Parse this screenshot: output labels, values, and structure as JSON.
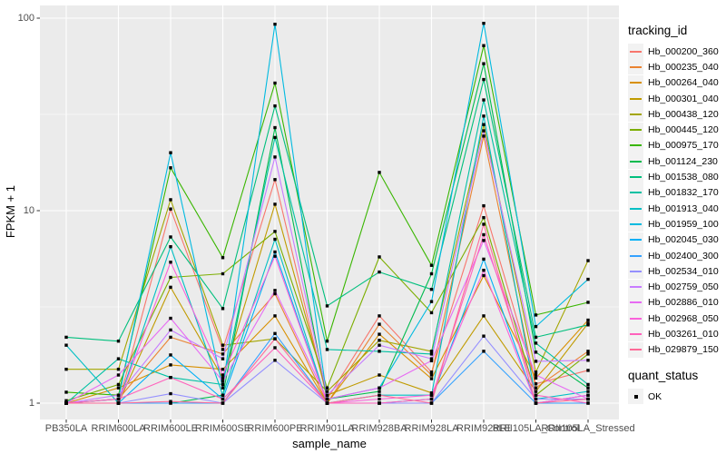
{
  "chart_data": {
    "type": "line",
    "title": "",
    "xlabel": "sample_name",
    "ylabel": "FPKM + 1",
    "yscale": "log10",
    "y_ticks": [
      1,
      10,
      100
    ],
    "y_minor": [
      3.162,
      31.62
    ],
    "ylim": [
      0.9,
      115
    ],
    "grid": true,
    "legend_position": "right",
    "point_marker": {
      "shape": "square",
      "color": "#000000",
      "size": 3.4
    },
    "categories": [
      "PB350LA",
      "RRIM600LA",
      "RRIM600LE",
      "RRIM600SE",
      "RRIM600PE",
      "RRIM901LA",
      "RRIM928BA",
      "RRIM928LA",
      "RRIM928LE",
      "RRII105LA_Control",
      "RRII105LA_Stressed"
    ],
    "series": [
      {
        "name": "Hb_000200_360",
        "color": "#F8766D",
        "values": [
          1.0,
          1.0,
          10.2,
          1.9,
          14.5,
          1.05,
          2.84,
          1.45,
          10.6,
          1.26,
          1.48
        ]
      },
      {
        "name": "Hb_000235_040",
        "color": "#EA8331",
        "values": [
          1.0,
          1.05,
          2.2,
          1.8,
          3.7,
          1.0,
          2.57,
          1.4,
          24.4,
          1.2,
          1.86
        ]
      },
      {
        "name": "Hb_000264_040",
        "color": "#D89000",
        "values": [
          1.0,
          1.2,
          1.58,
          1.5,
          2.84,
          1.0,
          2.28,
          1.34,
          4.6,
          1.35,
          2.7
        ]
      },
      {
        "name": "Hb_000301_040",
        "color": "#C09B00",
        "values": [
          1.0,
          1.0,
          4.0,
          1.35,
          10.8,
          1.1,
          1.4,
          1.13,
          2.84,
          1.15,
          2.6
        ]
      },
      {
        "name": "Hb_000438_120",
        "color": "#A3A500",
        "values": [
          1.5,
          1.5,
          11.4,
          2.0,
          2.16,
          1.15,
          2.12,
          1.86,
          28.0,
          1.45,
          5.5
        ]
      },
      {
        "name": "Hb_000445_120",
        "color": "#7CAE00",
        "values": [
          1.03,
          1.25,
          4.5,
          4.7,
          7.8,
          1.2,
          5.75,
          2.95,
          9.2,
          1.1,
          1.8
        ]
      },
      {
        "name": "Hb_000975_170",
        "color": "#39B600",
        "values": [
          1.14,
          1.1,
          16.7,
          5.7,
          46.0,
          2.1,
          15.8,
          5.2,
          72.0,
          2.87,
          3.34
        ]
      },
      {
        "name": "Hb_001124_230",
        "color": "#00BB4E",
        "values": [
          1.0,
          1.0,
          1.0,
          1.1,
          27.0,
          1.05,
          1.15,
          4.7,
          58.0,
          1.84,
          1.2
        ]
      },
      {
        "name": "Hb_001538_080",
        "color": "#00BF7D",
        "values": [
          2.2,
          2.1,
          7.3,
          3.1,
          35.0,
          3.2,
          4.8,
          3.9,
          48.0,
          2.2,
          2.55
        ]
      },
      {
        "name": "Hb_001832_170",
        "color": "#00C1A3",
        "values": [
          1.0,
          1.7,
          1.36,
          1.25,
          24.0,
          1.9,
          1.86,
          1.8,
          37.6,
          2.05,
          1.25
        ]
      },
      {
        "name": "Hb_001913_040",
        "color": "#00BFC4",
        "values": [
          2.0,
          1.0,
          6.5,
          1.1,
          7.1,
          1.0,
          1.1,
          1.1,
          31.0,
          1.05,
          1.15
        ]
      },
      {
        "name": "Hb_001959_100",
        "color": "#00BAE0",
        "values": [
          1.0,
          1.05,
          20.0,
          1.2,
          93.0,
          1.05,
          1.2,
          3.37,
          94.0,
          2.5,
          4.4
        ]
      },
      {
        "name": "Hb_002045_030",
        "color": "#00B0F6",
        "values": [
          1.0,
          1.0,
          1.78,
          1.05,
          6.1,
          1.0,
          1.0,
          1.05,
          5.6,
          1.0,
          1.1
        ]
      },
      {
        "name": "Hb_002400_300",
        "color": "#35A2FF",
        "values": [
          1.0,
          1.0,
          1.0,
          1.0,
          2.3,
          1.0,
          1.0,
          1.0,
          1.86,
          1.0,
          1.0
        ]
      },
      {
        "name": "Hb_002534_010",
        "color": "#9590FF",
        "values": [
          1.0,
          1.0,
          1.12,
          1.0,
          1.67,
          1.0,
          1.0,
          1.0,
          2.23,
          1.05,
          1.05
        ]
      },
      {
        "name": "Hb_002759_050",
        "color": "#C77CFF",
        "values": [
          1.0,
          1.1,
          2.4,
          1.7,
          19.0,
          1.1,
          2.0,
          1.7,
          26.0,
          1.65,
          1.67
        ]
      },
      {
        "name": "Hb_002886_010",
        "color": "#E76BF3",
        "values": [
          1.0,
          1.4,
          2.76,
          1.3,
          3.85,
          1.05,
          1.2,
          1.66,
          7.0,
          1.4,
          1.05
        ]
      },
      {
        "name": "Hb_002968_050",
        "color": "#FA62DB",
        "values": [
          1.0,
          1.0,
          5.4,
          1.4,
          5.8,
          1.0,
          1.05,
          1.1,
          4.9,
          1.0,
          1.1
        ]
      },
      {
        "name": "Hb_003261_010",
        "color": "#FF62BC",
        "values": [
          1.0,
          1.05,
          1.36,
          1.05,
          1.94,
          1.0,
          1.0,
          1.05,
          7.5,
          1.1,
          1.0
        ]
      },
      {
        "name": "Hb_029879_150",
        "color": "#FF6A98",
        "values": [
          1.0,
          1.0,
          1.02,
          1.0,
          2.16,
          1.0,
          1.1,
          1.0,
          8.5,
          1.0,
          1.05
        ]
      }
    ]
  },
  "legend": {
    "tracking_title": "tracking_id",
    "quant_title": "quant_status",
    "quant_items": [
      {
        "label": "OK",
        "marker": "black-square"
      }
    ]
  },
  "colors": {
    "figure_bg": "#FFFFFF",
    "panel_bg": "#EBEBEB",
    "grid": "#FFFFFF",
    "tick_text": "#4D4D4D",
    "axis_title_text": "#000000",
    "legend_key_bg": "#F2F2F2",
    "tick_mark": "#333333"
  }
}
